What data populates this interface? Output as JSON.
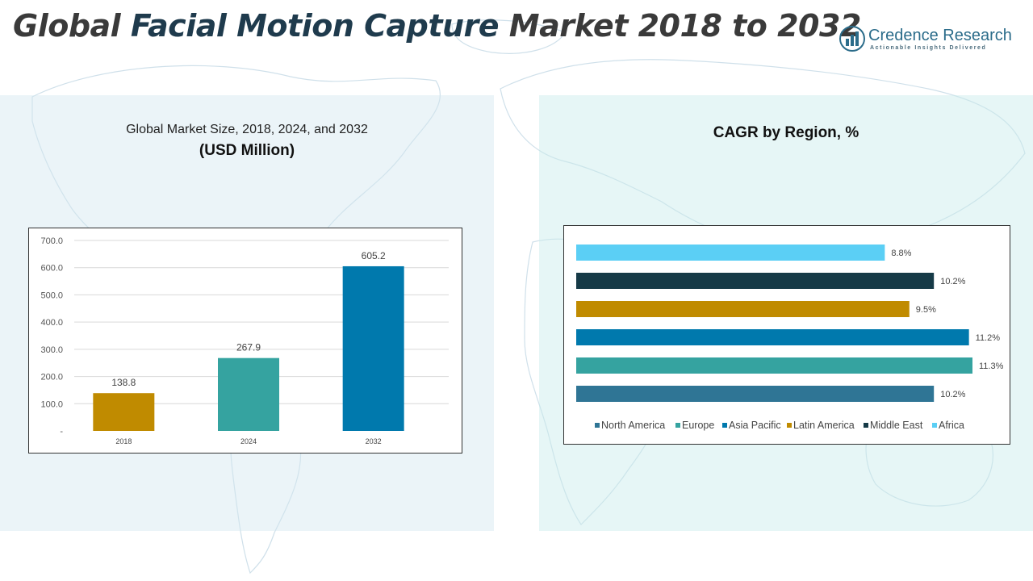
{
  "page": {
    "title_part1": "Global ",
    "title_part2": "Facial Motion Capture",
    "title_part3": " Market 2018 to 2032"
  },
  "logo": {
    "name": "Credence Research",
    "tagline": "Actionable Insights Delivered"
  },
  "colors": {
    "gold": "#C08B00",
    "teal": "#35A3A0",
    "blue": "#0079AD",
    "steel": "#2F7595",
    "dark": "#163A47",
    "sky": "#5BCFF5"
  },
  "chart_data": [
    {
      "type": "bar",
      "title": "Global Market Size, 2018, 2024, and 2032",
      "subtitle": "(USD Million)",
      "categories": [
        "2018",
        "2024",
        "2032"
      ],
      "values": [
        138.8,
        267.9,
        605.2
      ],
      "value_labels": [
        "138.8",
        "267.9",
        "605.2"
      ],
      "bar_colors": [
        "#C08B00",
        "#35A3A0",
        "#0079AD"
      ],
      "ylim": [
        0,
        700
      ],
      "yticks": [
        0,
        100,
        200,
        300,
        400,
        500,
        600,
        700
      ],
      "ytick_labels": [
        "-",
        "100.0",
        "200.0",
        "300.0",
        "400.0",
        "500.0",
        "600.0",
        "700.0"
      ],
      "grid": true,
      "legend": "none"
    },
    {
      "type": "bar",
      "orientation": "horizontal",
      "title": "CAGR by Region, %",
      "series": [
        {
          "name": "North America",
          "value": 10.2,
          "label": "10.2%",
          "color": "#2F7595"
        },
        {
          "name": "Europe",
          "value": 11.3,
          "label": "11.3%",
          "color": "#35A3A0"
        },
        {
          "name": "Asia Pacific",
          "value": 11.2,
          "label": "11.2%",
          "color": "#0079AD"
        },
        {
          "name": "Latin America",
          "value": 9.5,
          "label": "9.5%",
          "color": "#C08B00"
        },
        {
          "name": "Middle East",
          "value": 10.2,
          "label": "10.2%",
          "color": "#163A47"
        },
        {
          "name": "Africa",
          "value": 8.8,
          "label": "8.8%",
          "color": "#5BCFF5"
        }
      ],
      "xlim": [
        0,
        11.3
      ],
      "grid": false,
      "legend": "bottom"
    }
  ]
}
